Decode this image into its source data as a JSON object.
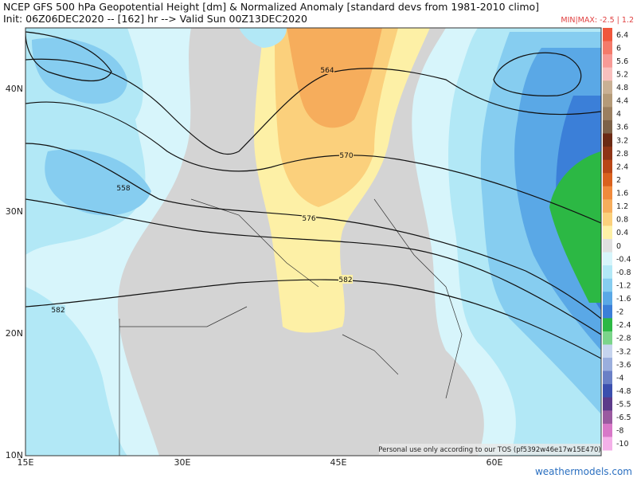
{
  "header": {
    "title": "NCEP GFS 500 hPa Geopotential Height [dm] & Normalized Anomaly [standard devs from 1981-2010 climo]",
    "subtitle": "Init: 06Z06DEC2020 -- [162] hr --> Valid Sun 00Z13DEC2020",
    "min_max": "MIN|MAX: -2.5 | 1.2"
  },
  "contour_labels": [
    "564",
    "570",
    "576",
    "582",
    "558",
    "582"
  ],
  "axes": {
    "lat": [
      "40N",
      "30N",
      "20N",
      "10N"
    ],
    "lon": [
      "15E",
      "30E",
      "45E",
      "60E"
    ]
  },
  "colorbar": [
    {
      "label": "6.4",
      "color": "#f0573c"
    },
    {
      "label": "6",
      "color": "#f47a6a"
    },
    {
      "label": "5.6",
      "color": "#f79a96"
    },
    {
      "label": "5.2",
      "color": "#f9bfbd"
    },
    {
      "label": "4.8",
      "color": "#c9b094"
    },
    {
      "label": "4.4",
      "color": "#b49a78"
    },
    {
      "label": "4",
      "color": "#9b7f5f"
    },
    {
      "label": "3.6",
      "color": "#7d6248"
    },
    {
      "label": "3.2",
      "color": "#6b2a14"
    },
    {
      "label": "2.8",
      "color": "#8e3415"
    },
    {
      "label": "2.4",
      "color": "#b84616"
    },
    {
      "label": "2",
      "color": "#d9611e"
    },
    {
      "label": "1.6",
      "color": "#f08a3c"
    },
    {
      "label": "1.2",
      "color": "#f6ad5c"
    },
    {
      "label": "0.8",
      "color": "#fbd07c"
    },
    {
      "label": "0.4",
      "color": "#fdf0a6"
    },
    {
      "label": "0",
      "color": "#e0e0e0"
    },
    {
      "label": "-0.4",
      "color": "#d7f5fb"
    },
    {
      "label": "-0.8",
      "color": "#b2e8f6"
    },
    {
      "label": "-1.2",
      "color": "#86cdf0"
    },
    {
      "label": "-1.6",
      "color": "#5aa8e6"
    },
    {
      "label": "-2",
      "color": "#3b7fd8"
    },
    {
      "label": "-2.4",
      "color": "#2cb844"
    },
    {
      "label": "-2.8",
      "color": "#7bd48a"
    },
    {
      "label": "-3.2",
      "color": "#c6d4ee"
    },
    {
      "label": "-3.6",
      "color": "#9aaedd"
    },
    {
      "label": "-4",
      "color": "#6a80c6"
    },
    {
      "label": "-4.8",
      "color": "#3b4fae"
    },
    {
      "label": "-5.5",
      "color": "#5c3a8a"
    },
    {
      "label": "-6.5",
      "color": "#9a5aa0"
    },
    {
      "label": "-8",
      "color": "#d878c8"
    },
    {
      "label": "-10",
      "color": "#f4b0e8"
    }
  ],
  "footer": {
    "note": "Personal use only according to our TOS (pf5392w46e17w15E470)",
    "site": "weathermodels.com"
  }
}
